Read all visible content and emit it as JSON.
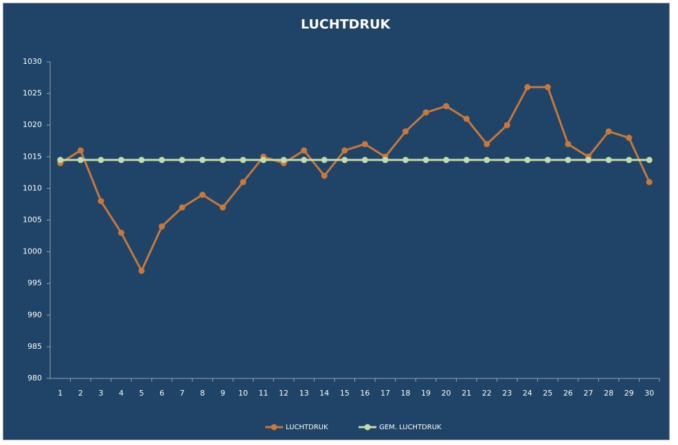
{
  "chart_data": {
    "type": "line",
    "title": "LUCHTDRUK",
    "categories": [
      "1",
      "2",
      "3",
      "4",
      "5",
      "6",
      "7",
      "8",
      "9",
      "10",
      "11",
      "12",
      "13",
      "14",
      "15",
      "16",
      "17",
      "18",
      "19",
      "20",
      "21",
      "22",
      "23",
      "24",
      "25",
      "26",
      "27",
      "28",
      "29",
      "30"
    ],
    "series": [
      {
        "name": "LUCHTDRUK",
        "color": "#c8783a",
        "values": [
          1014,
          1016,
          1008,
          1003,
          997,
          1004,
          1007,
          1009,
          1007,
          1011,
          1015,
          1014,
          1016,
          1012,
          1016,
          1017,
          1015,
          1019,
          1022,
          1023,
          1021,
          1017,
          1020,
          1026,
          1026,
          1017,
          1015,
          1019,
          1018,
          1011
        ]
      },
      {
        "name": "GEM. LUCHTDRUK",
        "color": "#c4dcac",
        "values": [
          1014.5,
          1014.5,
          1014.5,
          1014.5,
          1014.5,
          1014.5,
          1014.5,
          1014.5,
          1014.5,
          1014.5,
          1014.5,
          1014.5,
          1014.5,
          1014.5,
          1014.5,
          1014.5,
          1014.5,
          1014.5,
          1014.5,
          1014.5,
          1014.5,
          1014.5,
          1014.5,
          1014.5,
          1014.5,
          1014.5,
          1014.5,
          1014.5,
          1014.5,
          1014.5
        ]
      }
    ],
    "ylim": [
      980,
      1030
    ],
    "yticks": [
      980,
      985,
      990,
      995,
      1000,
      1005,
      1010,
      1015,
      1020,
      1025,
      1030
    ],
    "grid": false,
    "legend": "bottom"
  }
}
